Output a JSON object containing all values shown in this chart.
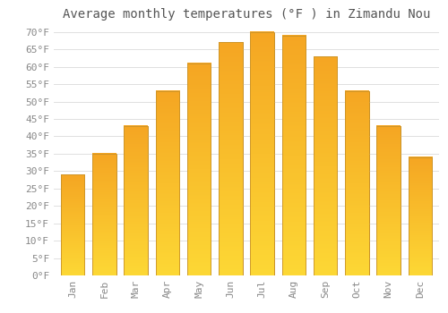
{
  "title": "Average monthly temperatures (°F ) in Zimandu Nou",
  "months": [
    "Jan",
    "Feb",
    "Mar",
    "Apr",
    "May",
    "Jun",
    "Jul",
    "Aug",
    "Sep",
    "Oct",
    "Nov",
    "Dec"
  ],
  "values": [
    29,
    35,
    43,
    53,
    61,
    67,
    70,
    69,
    63,
    53,
    43,
    34
  ],
  "bar_color_top": "#FDD835",
  "bar_color_bottom": "#F5A623",
  "bar_edge_color": "#C8922A",
  "background_color": "#FFFFFF",
  "grid_color": "#E0E0E0",
  "text_color": "#888888",
  "ylim": [
    0,
    72
  ],
  "yticks": [
    0,
    5,
    10,
    15,
    20,
    25,
    30,
    35,
    40,
    45,
    50,
    55,
    60,
    65,
    70
  ],
  "title_fontsize": 10,
  "tick_fontsize": 8
}
